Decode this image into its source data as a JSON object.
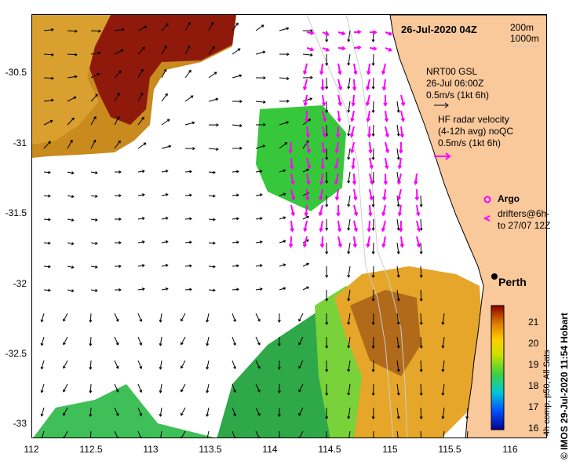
{
  "map": {
    "date": "26-Jul-2020 04Z",
    "isobath_legend": [
      "200m",
      "1000m"
    ],
    "gsl": {
      "title": "NRT00 GSL",
      "time": "26-Jul 06:00Z",
      "scale": "0.5m/s (1kt 6h)"
    },
    "radar": {
      "title": "HF radar velocity",
      "subtitle": "(4-12h avg) noQC",
      "scale": "0.5m/s (1kt 6h)"
    },
    "argo_label": "Argo",
    "drifters_label_1": "drifters@6h-",
    "drifters_label_2": "to 27/07 12Z",
    "city": "Perth",
    "credit": "© IMOS 29-Jul-2020 11:54 Hobart",
    "colorbar_label": "4h comp, p50, All Sats",
    "lat_ticks": [
      "-30.5",
      "-31",
      "-31.5",
      "-32",
      "-32.5",
      "-33"
    ],
    "lon_ticks": [
      "112",
      "112.5",
      "113",
      "113.5",
      "114",
      "114.5",
      "115",
      "115.5",
      "116"
    ],
    "colorbar_ticks": [
      "21",
      "20",
      "19",
      "18",
      "17",
      "16"
    ],
    "colors": {
      "land": "#f9c89b",
      "radar_arrow": "#ff00ff",
      "isobath": "#cccccc"
    }
  }
}
